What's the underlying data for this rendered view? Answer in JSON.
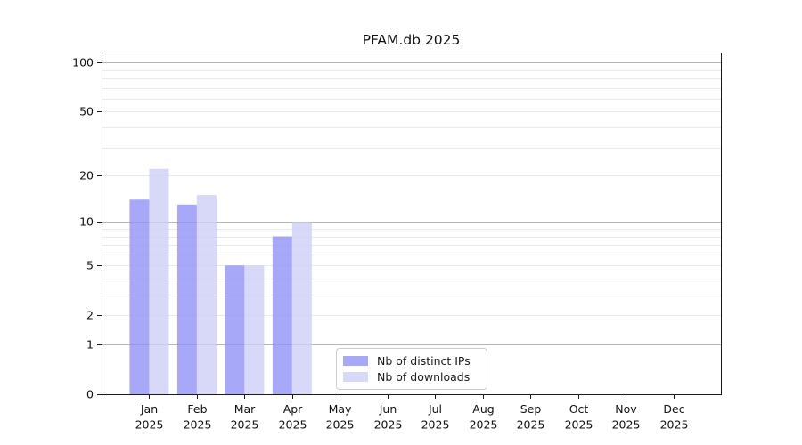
{
  "chart_data": {
    "type": "bar",
    "title": "PFAM.db 2025",
    "categories": [
      "Jan",
      "Feb",
      "Mar",
      "Apr",
      "May",
      "Jun",
      "Jul",
      "Aug",
      "Sep",
      "Oct",
      "Nov",
      "Dec"
    ],
    "category_year": "2025",
    "series": [
      {
        "name": "Nb of distinct IPs",
        "color": "#9292f7",
        "alpha": 0.8,
        "values": [
          14,
          13,
          5,
          8,
          0,
          0,
          0,
          0,
          0,
          0,
          0,
          0
        ]
      },
      {
        "name": "Nb of downloads",
        "color": "#cecef7",
        "alpha": 0.8,
        "values": [
          22,
          15,
          5,
          10,
          0,
          0,
          0,
          0,
          0,
          0,
          0,
          0
        ]
      }
    ],
    "xlabel": "",
    "ylabel": "",
    "yscale": "log1p",
    "ylim": [
      0,
      115
    ],
    "y_ticks": [
      0,
      1,
      2,
      5,
      10,
      20,
      50,
      100
    ],
    "grid": {
      "major_values": [
        1,
        10,
        100
      ],
      "minor_values": [
        2,
        3,
        4,
        5,
        6,
        7,
        8,
        9,
        20,
        30,
        40,
        50,
        60,
        70,
        80,
        90
      ],
      "major_color": "#b5b5b5",
      "minor_color": "#e9e9e9"
    },
    "legend_position": "lower center"
  }
}
